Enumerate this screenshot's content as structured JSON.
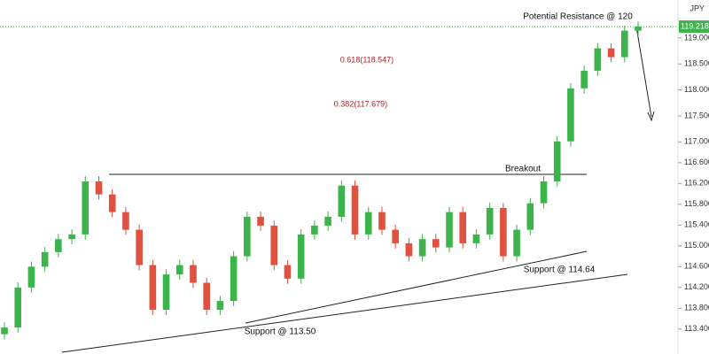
{
  "chart_data": {
    "type": "candlestick",
    "title": "JPY",
    "up_color": "#3cb44b",
    "down_color": "#e0523f",
    "ylim": [
      112.92,
      119.73
    ],
    "yticks": [
      {
        "value": 119,
        "label": "119.000"
      },
      {
        "value": 118.5,
        "label": "118.500"
      },
      {
        "value": 118,
        "label": "118.000"
      },
      {
        "value": 117.5,
        "label": "117.500"
      },
      {
        "value": 117,
        "label": "117.000"
      },
      {
        "value": 116.6,
        "label": "116.600"
      },
      {
        "value": 116.2,
        "label": "116.200"
      },
      {
        "value": 115.8,
        "label": "115.800"
      },
      {
        "value": 115.4,
        "label": "115.400"
      },
      {
        "value": 115,
        "label": "115.000"
      },
      {
        "value": 114.6,
        "label": "114.600"
      },
      {
        "value": 114.2,
        "label": "114.200"
      },
      {
        "value": 113.8,
        "label": "113.800"
      },
      {
        "value": 113.4,
        "label": "113.400"
      }
    ],
    "last_price": 119.218,
    "annotations": [
      "Potential Resistance @ 120",
      "0.618(118.547)",
      "0.382(117.679)",
      "Breakout",
      "Support @ 114.64",
      "Support @ 113.50"
    ],
    "open": [
      113.3,
      113.43,
      114.2,
      114.6,
      114.88,
      115.13,
      115.22,
      116.24,
      115.99,
      115.65,
      115.31,
      114.63,
      113.77,
      114.45,
      114.63,
      114.29,
      113.77,
      113.94,
      114.8,
      115.56,
      115.39,
      114.63,
      114.37,
      115.22,
      115.39,
      115.56,
      116.16,
      115.22,
      115.65,
      115.31,
      115.05,
      114.8,
      115.13,
      114.97,
      115.65,
      115.05,
      115.22,
      115.73,
      114.8,
      115.31,
      115.82,
      116.24,
      117.01,
      118.03,
      118.37,
      118.8,
      118.63,
      119.14
    ],
    "high": [
      113.53,
      114.3,
      114.7,
      114.98,
      115.23,
      115.32,
      116.34,
      116.34,
      116.09,
      115.75,
      115.41,
      114.73,
      114.55,
      114.73,
      114.73,
      114.39,
      114.04,
      114.9,
      115.66,
      115.66,
      115.49,
      114.73,
      115.32,
      115.49,
      115.66,
      116.26,
      116.26,
      115.75,
      115.75,
      115.41,
      115.15,
      115.23,
      115.23,
      115.75,
      115.75,
      115.32,
      115.83,
      115.83,
      115.41,
      115.92,
      116.34,
      117.11,
      118.13,
      118.47,
      118.9,
      118.9,
      119.24,
      119.32
    ],
    "low": [
      113.2,
      113.33,
      114.1,
      114.5,
      114.78,
      115.03,
      115.12,
      115.89,
      115.55,
      115.21,
      114.53,
      113.67,
      113.67,
      114.35,
      114.19,
      113.67,
      113.67,
      113.84,
      114.7,
      115.29,
      114.53,
      114.27,
      114.27,
      115.12,
      115.29,
      115.46,
      115.12,
      115.12,
      115.21,
      114.95,
      114.7,
      114.7,
      114.87,
      114.87,
      114.95,
      114.95,
      115.12,
      114.7,
      114.7,
      115.21,
      115.72,
      116.14,
      116.91,
      117.93,
      118.27,
      118.53,
      118.53,
      119.04
    ],
    "close": [
      113.43,
      114.2,
      114.6,
      114.88,
      115.13,
      115.22,
      116.24,
      115.99,
      115.65,
      115.31,
      114.63,
      113.77,
      114.45,
      114.63,
      114.29,
      113.77,
      113.94,
      114.8,
      115.56,
      115.39,
      114.63,
      114.37,
      115.22,
      115.39,
      115.56,
      116.16,
      115.22,
      115.65,
      115.31,
      115.05,
      114.8,
      115.13,
      114.97,
      115.65,
      115.05,
      115.22,
      115.73,
      114.8,
      115.31,
      115.82,
      116.24,
      117.01,
      118.03,
      118.37,
      118.8,
      118.63,
      119.14,
      119.22
    ]
  }
}
